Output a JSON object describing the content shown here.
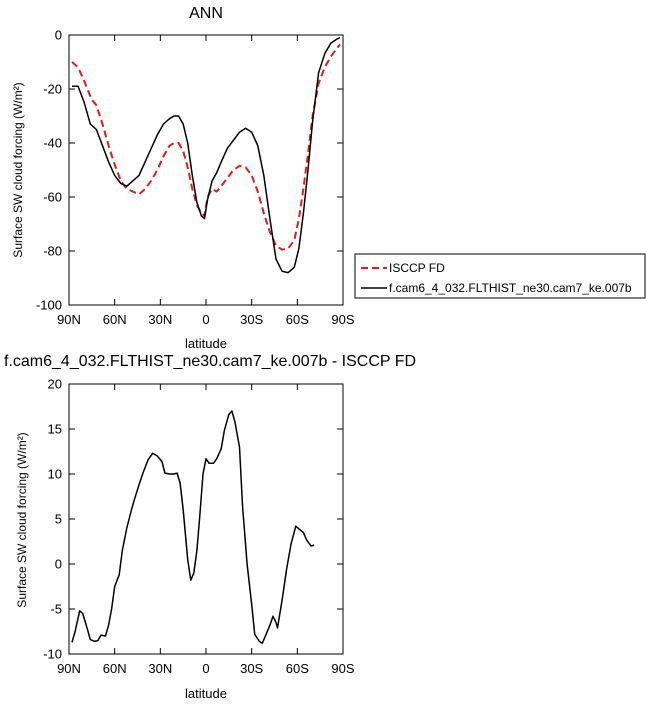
{
  "chart_data": [
    {
      "type": "line",
      "title": "ANN",
      "xlabel": "latitude",
      "ylabel": "Surface SW cloud forcing (W/m²)",
      "xlim": [
        90,
        -90
      ],
      "ylim": [
        -100,
        0
      ],
      "x_tick_values": [
        90,
        60,
        30,
        0,
        -30,
        -60,
        -90
      ],
      "x_tick_labels": [
        "90N",
        "60N",
        "30N",
        "0",
        "30S",
        "60S",
        "90S"
      ],
      "y_tick_values": [
        0,
        -20,
        -40,
        -60,
        -80,
        -100
      ],
      "y_tick_labels": [
        "0",
        "-20",
        "-40",
        "-60",
        "-80",
        "-100"
      ],
      "grid": false,
      "legend_position": "right",
      "series": [
        {
          "name": "ISCCP FD",
          "color": "#e41a1c",
          "dash": "dashed",
          "points": [
            [
              88,
              -10
            ],
            [
              84,
              -12
            ],
            [
              80,
              -17
            ],
            [
              75,
              -24
            ],
            [
              72,
              -26
            ],
            [
              68,
              -33
            ],
            [
              64,
              -41
            ],
            [
              60,
              -48
            ],
            [
              56,
              -54
            ],
            [
              52,
              -57
            ],
            [
              48,
              -58
            ],
            [
              44,
              -59
            ],
            [
              40,
              -57
            ],
            [
              36,
              -54
            ],
            [
              32,
              -50
            ],
            [
              28,
              -45
            ],
            [
              24,
              -41
            ],
            [
              21,
              -40
            ],
            [
              18,
              -40
            ],
            [
              15,
              -43
            ],
            [
              12,
              -49
            ],
            [
              9,
              -57
            ],
            [
              6,
              -63
            ],
            [
              3,
              -66
            ],
            [
              1,
              -67
            ],
            [
              -1,
              -60
            ],
            [
              -4,
              -57
            ],
            [
              -7,
              -58
            ],
            [
              -10,
              -56
            ],
            [
              -14,
              -53
            ],
            [
              -18,
              -50
            ],
            [
              -22,
              -48.5
            ],
            [
              -26,
              -49
            ],
            [
              -30,
              -52
            ],
            [
              -34,
              -58
            ],
            [
              -38,
              -66
            ],
            [
              -42,
              -73
            ],
            [
              -46,
              -78
            ],
            [
              -50,
              -79.5
            ],
            [
              -54,
              -79
            ],
            [
              -58,
              -76
            ],
            [
              -61,
              -68
            ],
            [
              -64,
              -57
            ],
            [
              -67,
              -44
            ],
            [
              -70,
              -30
            ],
            [
              -74,
              -18
            ],
            [
              -78,
              -12
            ],
            [
              -82,
              -8
            ],
            [
              -86,
              -5
            ],
            [
              -88,
              -3.5
            ]
          ]
        },
        {
          "name": "f.cam6_4_032.FLTHIST_ne30.cam7_ke.007b",
          "color": "#000000",
          "dash": "solid",
          "points": [
            [
              88,
              -19
            ],
            [
              84,
              -19
            ],
            [
              80,
              -25
            ],
            [
              76,
              -33
            ],
            [
              72,
              -35
            ],
            [
              68,
              -41
            ],
            [
              64,
              -47
            ],
            [
              60,
              -52
            ],
            [
              56,
              -55
            ],
            [
              52,
              -56
            ],
            [
              48,
              -54
            ],
            [
              44,
              -52
            ],
            [
              40,
              -47
            ],
            [
              36,
              -42
            ],
            [
              32,
              -37
            ],
            [
              28,
              -33
            ],
            [
              24,
              -31
            ],
            [
              21,
              -30
            ],
            [
              18,
              -30
            ],
            [
              15,
              -33
            ],
            [
              12,
              -40
            ],
            [
              9,
              -52
            ],
            [
              6,
              -62
            ],
            [
              3,
              -67
            ],
            [
              1,
              -68
            ],
            [
              -1,
              -61
            ],
            [
              -4,
              -54
            ],
            [
              -7,
              -51
            ],
            [
              -10,
              -47
            ],
            [
              -14,
              -42
            ],
            [
              -18,
              -39
            ],
            [
              -22,
              -36
            ],
            [
              -26,
              -34.5
            ],
            [
              -30,
              -36
            ],
            [
              -34,
              -41
            ],
            [
              -38,
              -52
            ],
            [
              -42,
              -68
            ],
            [
              -46,
              -83
            ],
            [
              -50,
              -87.5
            ],
            [
              -54,
              -88
            ],
            [
              -58,
              -86
            ],
            [
              -61,
              -79
            ],
            [
              -64,
              -66
            ],
            [
              -67,
              -50
            ],
            [
              -70,
              -32
            ],
            [
              -74,
              -14
            ],
            [
              -78,
              -7
            ],
            [
              -82,
              -3
            ],
            [
              -86,
              -1.5
            ],
            [
              -88,
              -1
            ]
          ]
        }
      ]
    },
    {
      "type": "line",
      "title": "f.cam6_4_032.FLTHIST_ne30.cam7_ke.007b - ISCCP FD",
      "xlabel": "latitude",
      "ylabel": "Surface SW cloud forcing (W/m²)",
      "xlim": [
        90,
        -90
      ],
      "ylim": [
        -10,
        20
      ],
      "x_tick_values": [
        90,
        60,
        30,
        0,
        -30,
        -60,
        -90
      ],
      "x_tick_labels": [
        "90N",
        "60N",
        "30N",
        "0",
        "30S",
        "60S",
        "90S"
      ],
      "y_tick_values": [
        20,
        15,
        10,
        5,
        0,
        -5,
        -10
      ],
      "y_tick_labels": [
        "20",
        "15",
        "10",
        "5",
        "0",
        "-5",
        "-10"
      ],
      "grid": false,
      "series": [
        {
          "color": "#000000",
          "dash": "solid",
          "points": [
            [
              88,
              -8.7
            ],
            [
              86,
              -7.5
            ],
            [
              83,
              -5.2
            ],
            [
              81,
              -5.5
            ],
            [
              78,
              -7.2
            ],
            [
              76,
              -8.4
            ],
            [
              73,
              -8.6
            ],
            [
              71,
              -8.5
            ],
            [
              69,
              -7.9
            ],
            [
              66,
              -8.0
            ],
            [
              64,
              -6.8
            ],
            [
              62,
              -5.0
            ],
            [
              60,
              -2.5
            ],
            [
              57,
              -1.2
            ],
            [
              55,
              1.5
            ],
            [
              52,
              4.0
            ],
            [
              49,
              6.0
            ],
            [
              47,
              7.2
            ],
            [
              44,
              8.8
            ],
            [
              41,
              10.3
            ],
            [
              38,
              11.6
            ],
            [
              35,
              12.3
            ],
            [
              32,
              12.0
            ],
            [
              29,
              11.4
            ],
            [
              27,
              10.1
            ],
            [
              24,
              10.0
            ],
            [
              21,
              10.0
            ],
            [
              19,
              10.1
            ],
            [
              17,
              9.0
            ],
            [
              15,
              6.0
            ],
            [
              12,
              0.5
            ],
            [
              10,
              -1.8
            ],
            [
              8,
              -1.0
            ],
            [
              6,
              1.5
            ],
            [
              4,
              5.5
            ],
            [
              2,
              10.0
            ],
            [
              0,
              11.7
            ],
            [
              -2,
              11.2
            ],
            [
              -5,
              11.2
            ],
            [
              -7,
              11.7
            ],
            [
              -10,
              12.8
            ],
            [
              -12,
              14.8
            ],
            [
              -15,
              16.6
            ],
            [
              -17,
              17.0
            ],
            [
              -19,
              15.8
            ],
            [
              -22,
              13.0
            ],
            [
              -24,
              6.5
            ],
            [
              -27,
              0.0
            ],
            [
              -30,
              -4.5
            ],
            [
              -32,
              -7.8
            ],
            [
              -35,
              -8.6
            ],
            [
              -37,
              -8.8
            ],
            [
              -39,
              -8.0
            ],
            [
              -42,
              -6.8
            ],
            [
              -44,
              -5.8
            ],
            [
              -46,
              -6.5
            ],
            [
              -47,
              -7.1
            ],
            [
              -50,
              -4.0
            ],
            [
              -53,
              -0.5
            ],
            [
              -56,
              2.3
            ],
            [
              -59,
              4.2
            ],
            [
              -61,
              3.9
            ],
            [
              -64,
              3.5
            ],
            [
              -66,
              2.7
            ],
            [
              -69,
              2.0
            ],
            [
              -71,
              2.1
            ]
          ]
        }
      ]
    }
  ]
}
